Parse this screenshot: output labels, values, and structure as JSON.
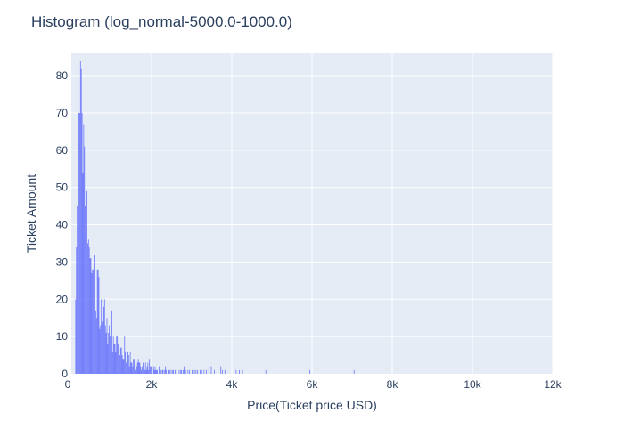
{
  "chart_data": {
    "type": "histogram",
    "title": "Histogram (log_normal-5000.0-1000.0)",
    "xlabel": "Price(Ticket price USD)",
    "ylabel": "Ticket Amount",
    "xlim": [
      0,
      12000
    ],
    "ylim": [
      0,
      86
    ],
    "x_ticks": [
      0,
      2000,
      4000,
      6000,
      8000,
      10000,
      12000
    ],
    "x_tick_labels": [
      "0",
      "2k",
      "4k",
      "6k",
      "8k",
      "10k",
      "12k"
    ],
    "y_ticks": [
      0,
      10,
      20,
      30,
      40,
      50,
      60,
      70,
      80
    ],
    "y_tick_labels": [
      "0",
      "10",
      "20",
      "30",
      "40",
      "50",
      "60",
      "70",
      "80"
    ],
    "bar_color": "#636efa",
    "plot_bg": "#e5ecf6",
    "grid": true,
    "legend": "none",
    "bin_width": 20,
    "bin_starts": [
      100,
      120,
      140,
      160,
      180,
      200,
      220,
      240,
      260,
      280,
      300,
      320,
      340,
      360,
      380,
      400,
      420,
      440,
      460,
      480,
      500,
      520,
      540,
      560,
      580,
      600,
      620,
      640,
      660,
      680,
      700,
      720,
      740,
      760,
      780,
      800,
      820,
      840,
      860,
      880,
      900,
      920,
      940,
      960,
      980,
      1000,
      1020,
      1040,
      1060,
      1080,
      1100,
      1120,
      1140,
      1160,
      1180,
      1200,
      1220,
      1240,
      1260,
      1280,
      1300,
      1320,
      1340,
      1360,
      1380,
      1400,
      1420,
      1440,
      1460,
      1480,
      1500,
      1520,
      1540,
      1560,
      1580,
      1600,
      1620,
      1640,
      1660,
      1680,
      1700,
      1720,
      1740,
      1760,
      1780,
      1800,
      1820,
      1840,
      1860,
      1880,
      1900,
      1920,
      1940,
      1960,
      1980,
      2000,
      2020,
      2040,
      2060,
      2080,
      2100,
      2120,
      2140,
      2160,
      2180,
      2200,
      2220,
      2240,
      2260,
      2280,
      2300,
      2320,
      2340,
      2360,
      2380,
      2400,
      2420,
      2440,
      2460,
      2480,
      2500,
      2520,
      2540,
      2560,
      2580,
      2600,
      2620,
      2640,
      2660,
      2680,
      2700,
      2720,
      2740,
      2760,
      2780,
      2800,
      2820,
      2840,
      2860,
      2880,
      2900,
      2920,
      2940,
      2960,
      2980,
      3000,
      3020,
      3040,
      3060,
      3080,
      3100,
      3120,
      3140,
      3160,
      3180,
      3200,
      3220,
      3240,
      3260,
      3280,
      3300,
      3320,
      3340,
      3360,
      3380,
      3400,
      3420,
      3440,
      3460,
      3480,
      3500,
      3520,
      3540,
      3560,
      3580,
      3600,
      3620,
      3640,
      3660,
      3680,
      3700,
      3720,
      3740,
      3760,
      3780,
      3800,
      3820,
      3840,
      3860,
      3880,
      3900,
      3920,
      3940,
      3960,
      3980,
      4000,
      4020,
      4040,
      4060,
      4080,
      4100,
      4120,
      4140,
      4160,
      4180,
      4200,
      4220,
      4240,
      4260,
      4280,
      4300,
      4320,
      4340,
      4360,
      4380,
      4400,
      4420,
      4440,
      4460,
      4480,
      4500,
      4520,
      4540,
      4560,
      4580,
      4600,
      4620,
      4640,
      4660,
      4680,
      4700,
      4720,
      4740,
      4760,
      4780,
      4800,
      4820,
      4840,
      4860,
      4880,
      4900,
      4920,
      4940,
      4960,
      4980,
      5000,
      5020,
      5040,
      5060,
      5080,
      5100,
      5120,
      5140,
      5160,
      5180,
      5200,
      5220,
      5240,
      5260,
      5280,
      5300,
      5320,
      5340,
      5360,
      5380,
      5400,
      5420,
      5440,
      5460,
      5480,
      5500,
      5520,
      5540,
      5560,
      5580,
      5600,
      5620,
      5640,
      5660,
      5680,
      5700,
      5720,
      5740,
      5760,
      5780,
      5800,
      5820,
      5840,
      5860,
      5880,
      5900,
      5920,
      5940,
      5960,
      5980,
      6000,
      6020,
      6040,
      6060,
      6080,
      6100,
      6120,
      6140,
      6160,
      6180,
      6200,
      6220,
      6240,
      6260,
      6280,
      6300,
      6320,
      6340,
      6360,
      6380,
      6400,
      6420,
      6440,
      6460,
      6480,
      6500,
      6520,
      6540,
      6560,
      6580,
      6600,
      6620,
      6640,
      6660,
      6680,
      6700,
      6720,
      6740,
      6760,
      6780,
      6800,
      6820,
      6840,
      6860,
      6880,
      6900,
      6920,
      6940,
      6960,
      6980,
      7000,
      7020,
      7040,
      7060,
      7080,
      7100,
      7120,
      7140,
      7160,
      7180,
      7200
    ],
    "counts": [
      20,
      34,
      45,
      55,
      70,
      70,
      84,
      82,
      70,
      54,
      67,
      61,
      45,
      42,
      49,
      35,
      36,
      34,
      31,
      31,
      27,
      28,
      28,
      26,
      32,
      17,
      15,
      28,
      28,
      26,
      12,
      13,
      20,
      14,
      19,
      18,
      20,
      13,
      11,
      15,
      8,
      11,
      13,
      10,
      12,
      17,
      6,
      10,
      8,
      8,
      6,
      10,
      10,
      8,
      10,
      5,
      7,
      7,
      5,
      4,
      4,
      10,
      6,
      3,
      5,
      6,
      5,
      2,
      6,
      3,
      3,
      2,
      4,
      4,
      4,
      1,
      2,
      3,
      4,
      3,
      3,
      2,
      1,
      2,
      3,
      1,
      1,
      3,
      1,
      2,
      3,
      1,
      4,
      2,
      2,
      3,
      0,
      2,
      1,
      2,
      1,
      1,
      1,
      0,
      2,
      1,
      1,
      0,
      1,
      1,
      0,
      1,
      2,
      1,
      0,
      0,
      1,
      1,
      0,
      1,
      0,
      1,
      1,
      0,
      1,
      0,
      1,
      0,
      0,
      1,
      0,
      1,
      1,
      0,
      1,
      2,
      0,
      1,
      0,
      0,
      1,
      0,
      1,
      0,
      0,
      1,
      0,
      0,
      1,
      0,
      1,
      0,
      1,
      0,
      0,
      1,
      0,
      1,
      0,
      0,
      1,
      0,
      0,
      1,
      0,
      0,
      2,
      0,
      0,
      2,
      0,
      0,
      0,
      1,
      0,
      0,
      0,
      0,
      0,
      0,
      0,
      2,
      0,
      1,
      0,
      0,
      1,
      0,
      0,
      0,
      0,
      0,
      0,
      0,
      0,
      0,
      0,
      0,
      0,
      0,
      1,
      0,
      0,
      0,
      1,
      0,
      0,
      0,
      1,
      0,
      0,
      0,
      0,
      0,
      0,
      0,
      0,
      0,
      0,
      0,
      0,
      0,
      0,
      0,
      0,
      0,
      0,
      0,
      0,
      0,
      0,
      0,
      0,
      0,
      0,
      0,
      0,
      1,
      0,
      0,
      0,
      0,
      0,
      0,
      0,
      0,
      0,
      0,
      0,
      0,
      0,
      0,
      0,
      0,
      0,
      0,
      0,
      0,
      0,
      0,
      0,
      0,
      0,
      0,
      0,
      0,
      0,
      0,
      0,
      0,
      0,
      0,
      0,
      0,
      0,
      0,
      0,
      0,
      0,
      0,
      0,
      0,
      0,
      0,
      0,
      0,
      0,
      0,
      0,
      0,
      0,
      0,
      1,
      0,
      0,
      0,
      0,
      0,
      0,
      0,
      0,
      0,
      0,
      0,
      0,
      0,
      0,
      0,
      0,
      0,
      0,
      0,
      0,
      0,
      0,
      0,
      0,
      0,
      0,
      0,
      0,
      0,
      0,
      0,
      0,
      0,
      0,
      0,
      0,
      0,
      0,
      0,
      0,
      0,
      0,
      0,
      0,
      0,
      0,
      0,
      0,
      0,
      0,
      0,
      0,
      0,
      0,
      1
    ]
  }
}
